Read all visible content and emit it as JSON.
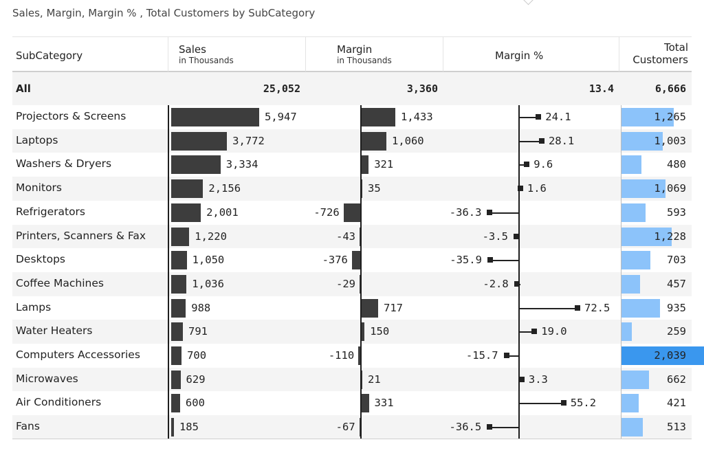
{
  "title": "Sales, Margin, Margin % , Total Customers by SubCategory",
  "headers": {
    "subcategory": "SubCategory",
    "sales": "Sales",
    "sales_sub": "in Thousands",
    "margin": "Margin",
    "margin_sub": "in Thousands",
    "margin_pct": "Margin %",
    "customers_line1": "Total",
    "customers_line2": "Customers"
  },
  "totals": {
    "label": "All",
    "sales": "25,052",
    "margin": "3,360",
    "margin_pct": "13.4",
    "customers": "6,666"
  },
  "colors": {
    "bar": "#3d3d3d",
    "lollipop": "#222222",
    "customers_light": "#8cc3fa",
    "customers_dark": "#3a97ee"
  },
  "chart_data": {
    "type": "table",
    "columns": [
      "SubCategory",
      "Sales",
      "Margin",
      "Margin %",
      "Total Customers"
    ],
    "rows": [
      {
        "subcategory": "Projectors & Screens",
        "sales": 5947,
        "margin": 1433,
        "margin_pct": 24.1,
        "customers": 1265
      },
      {
        "subcategory": "Laptops",
        "sales": 3772,
        "margin": 1060,
        "margin_pct": 28.1,
        "customers": 1003
      },
      {
        "subcategory": "Washers & Dryers",
        "sales": 3334,
        "margin": 321,
        "margin_pct": 9.6,
        "customers": 480
      },
      {
        "subcategory": "Monitors",
        "sales": 2156,
        "margin": 35,
        "margin_pct": 1.6,
        "customers": 1069
      },
      {
        "subcategory": "Refrigerators",
        "sales": 2001,
        "margin": -726,
        "margin_pct": -36.3,
        "customers": 593
      },
      {
        "subcategory": "Printers, Scanners & Fax",
        "sales": 1220,
        "margin": -43,
        "margin_pct": -3.5,
        "customers": 1228
      },
      {
        "subcategory": "Desktops",
        "sales": 1050,
        "margin": -376,
        "margin_pct": -35.9,
        "customers": 703
      },
      {
        "subcategory": "Coffee Machines",
        "sales": 1036,
        "margin": -29,
        "margin_pct": -2.8,
        "customers": 457
      },
      {
        "subcategory": "Lamps",
        "sales": 988,
        "margin": 717,
        "margin_pct": 72.5,
        "customers": 935
      },
      {
        "subcategory": "Water Heaters",
        "sales": 791,
        "margin": 150,
        "margin_pct": 19.0,
        "customers": 259
      },
      {
        "subcategory": "Computers Accessories",
        "sales": 700,
        "margin": -110,
        "margin_pct": -15.7,
        "customers": 2039
      },
      {
        "subcategory": "Microwaves",
        "sales": 629,
        "margin": 21,
        "margin_pct": 3.3,
        "customers": 662
      },
      {
        "subcategory": "Air Conditioners",
        "sales": 600,
        "margin": 331,
        "margin_pct": 55.2,
        "customers": 421
      },
      {
        "subcategory": "Fans",
        "sales": 185,
        "margin": -67,
        "margin_pct": -36.5,
        "customers": 513
      }
    ]
  }
}
